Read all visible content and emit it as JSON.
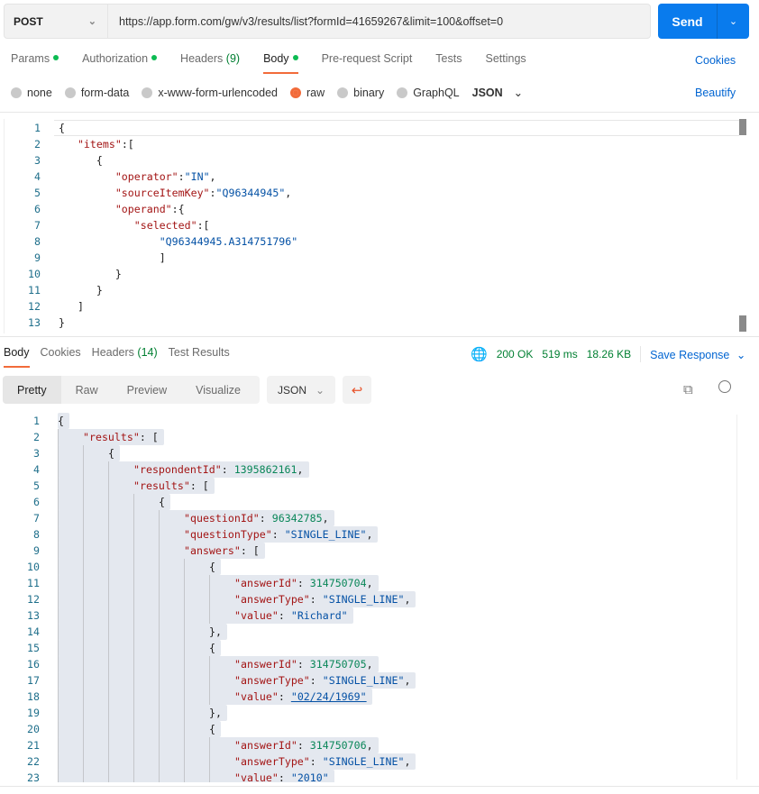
{
  "request": {
    "method": "POST",
    "url": "https://app.form.com/gw/v3/results/list?formId=41659267&limit=100&offset=0",
    "send_label": "Send"
  },
  "tabs": [
    {
      "label": "Params",
      "dot": true
    },
    {
      "label": "Authorization",
      "dot": true
    },
    {
      "label": "Headers",
      "count": "(9)"
    },
    {
      "label": "Body",
      "dot": true,
      "active": true
    },
    {
      "label": "Pre-request Script"
    },
    {
      "label": "Tests"
    },
    {
      "label": "Settings"
    }
  ],
  "cookies_label": "Cookies",
  "body_types": [
    {
      "label": "none"
    },
    {
      "label": "form-data"
    },
    {
      "label": "x-www-form-urlencoded"
    },
    {
      "label": "raw",
      "selected": true
    },
    {
      "label": "binary"
    },
    {
      "label": "GraphQL"
    }
  ],
  "body_format": "JSON",
  "beautify_label": "Beautify",
  "request_body": [
    [
      [
        "{",
        "p"
      ]
    ],
    [
      [
        "   ",
        "p"
      ],
      [
        "\"items\"",
        "k"
      ],
      [
        ":[",
        "p"
      ]
    ],
    [
      [
        "      ",
        "p"
      ],
      [
        "{",
        "p"
      ]
    ],
    [
      [
        "         ",
        "p"
      ],
      [
        "\"operator\"",
        "k"
      ],
      [
        ":",
        "p"
      ],
      [
        "\"IN\"",
        "s"
      ],
      [
        ",",
        "p"
      ]
    ],
    [
      [
        "         ",
        "p"
      ],
      [
        "\"sourceItemKey\"",
        "k"
      ],
      [
        ":",
        "p"
      ],
      [
        "\"Q96344945\"",
        "s"
      ],
      [
        ",",
        "p"
      ]
    ],
    [
      [
        "         ",
        "p"
      ],
      [
        "\"operand\"",
        "k"
      ],
      [
        ":{",
        "p"
      ]
    ],
    [
      [
        "            ",
        "p"
      ],
      [
        "\"selected\"",
        "k"
      ],
      [
        ":[",
        "p"
      ]
    ],
    [
      [
        "                ",
        "p"
      ],
      [
        "\"Q96344945.A314751796\"",
        "s"
      ]
    ],
    [
      [
        "                ",
        "p"
      ],
      [
        "]",
        "p"
      ]
    ],
    [
      [
        "         ",
        "p"
      ],
      [
        "}",
        "p"
      ]
    ],
    [
      [
        "      ",
        "p"
      ],
      [
        "}",
        "p"
      ]
    ],
    [
      [
        "   ",
        "p"
      ],
      [
        "]",
        "p"
      ]
    ],
    [
      [
        "}",
        "p"
      ]
    ]
  ],
  "response_tabs": [
    {
      "label": "Body",
      "active": true
    },
    {
      "label": "Cookies"
    },
    {
      "label": "Headers",
      "count": "(14)"
    },
    {
      "label": "Test Results"
    }
  ],
  "status": {
    "code": "200 OK",
    "time": "519 ms",
    "size": "18.26 KB"
  },
  "save_response_label": "Save Response",
  "view_modes": [
    {
      "label": "Pretty",
      "active": true
    },
    {
      "label": "Raw"
    },
    {
      "label": "Preview"
    },
    {
      "label": "Visualize"
    }
  ],
  "response_format": "JSON",
  "colors": {
    "accent": "#f26b3a",
    "primary": "#097bed",
    "key": "#a31515",
    "string": "#0451a5",
    "number": "#098658",
    "status": "#007f31"
  },
  "response_body": [
    {
      "lvl": 0,
      "t": [
        [
          "{",
          "p"
        ]
      ]
    },
    {
      "lvl": 1,
      "t": [
        [
          "\"results\"",
          "k"
        ],
        [
          ": [",
          "p"
        ]
      ]
    },
    {
      "lvl": 2,
      "t": [
        [
          "{",
          "p"
        ]
      ]
    },
    {
      "lvl": 3,
      "t": [
        [
          "\"respondentId\"",
          "k"
        ],
        [
          ": ",
          "p"
        ],
        [
          "1395862161",
          "n"
        ],
        [
          ",",
          "p"
        ]
      ]
    },
    {
      "lvl": 3,
      "t": [
        [
          "\"results\"",
          "k"
        ],
        [
          ": [",
          "p"
        ]
      ]
    },
    {
      "lvl": 4,
      "t": [
        [
          "{",
          "p"
        ]
      ]
    },
    {
      "lvl": 5,
      "t": [
        [
          "\"questionId\"",
          "k"
        ],
        [
          ": ",
          "p"
        ],
        [
          "96342785",
          "n"
        ],
        [
          ",",
          "p"
        ]
      ]
    },
    {
      "lvl": 5,
      "t": [
        [
          "\"questionType\"",
          "k"
        ],
        [
          ": ",
          "p"
        ],
        [
          "\"SINGLE_LINE\"",
          "s"
        ],
        [
          ",",
          "p"
        ]
      ]
    },
    {
      "lvl": 5,
      "t": [
        [
          "\"answers\"",
          "k"
        ],
        [
          ": [",
          "p"
        ]
      ]
    },
    {
      "lvl": 6,
      "t": [
        [
          "{",
          "p"
        ]
      ]
    },
    {
      "lvl": 7,
      "t": [
        [
          "\"answerId\"",
          "k"
        ],
        [
          ": ",
          "p"
        ],
        [
          "314750704",
          "n"
        ],
        [
          ",",
          "p"
        ]
      ]
    },
    {
      "lvl": 7,
      "t": [
        [
          "\"answerType\"",
          "k"
        ],
        [
          ": ",
          "p"
        ],
        [
          "\"SINGLE_LINE\"",
          "s"
        ],
        [
          ",",
          "p"
        ]
      ]
    },
    {
      "lvl": 7,
      "t": [
        [
          "\"value\"",
          "k"
        ],
        [
          ": ",
          "p"
        ],
        [
          "\"Richard\"",
          "s"
        ]
      ]
    },
    {
      "lvl": 6,
      "t": [
        [
          "},",
          "p"
        ]
      ]
    },
    {
      "lvl": 6,
      "t": [
        [
          "{",
          "p"
        ]
      ]
    },
    {
      "lvl": 7,
      "t": [
        [
          "\"answerId\"",
          "k"
        ],
        [
          ": ",
          "p"
        ],
        [
          "314750705",
          "n"
        ],
        [
          ",",
          "p"
        ]
      ]
    },
    {
      "lvl": 7,
      "t": [
        [
          "\"answerType\"",
          "k"
        ],
        [
          ": ",
          "p"
        ],
        [
          "\"SINGLE_LINE\"",
          "s"
        ],
        [
          ",",
          "p"
        ]
      ]
    },
    {
      "lvl": 7,
      "t": [
        [
          "\"value\"",
          "k"
        ],
        [
          ": ",
          "p"
        ],
        [
          "\"02/24/1969\"",
          "s"
        ]
      ]
    },
    {
      "lvl": 6,
      "t": [
        [
          "},",
          "p"
        ]
      ]
    },
    {
      "lvl": 6,
      "t": [
        [
          "{",
          "p"
        ]
      ]
    },
    {
      "lvl": 7,
      "t": [
        [
          "\"answerId\"",
          "k"
        ],
        [
          ": ",
          "p"
        ],
        [
          "314750706",
          "n"
        ],
        [
          ",",
          "p"
        ]
      ]
    },
    {
      "lvl": 7,
      "t": [
        [
          "\"answerType\"",
          "k"
        ],
        [
          ": ",
          "p"
        ],
        [
          "\"SINGLE_LINE\"",
          "s"
        ],
        [
          ",",
          "p"
        ]
      ]
    },
    {
      "lvl": 7,
      "t": [
        [
          "\"value\"",
          "k"
        ],
        [
          ": ",
          "p"
        ],
        [
          "\"2010\"",
          "s"
        ]
      ]
    }
  ]
}
